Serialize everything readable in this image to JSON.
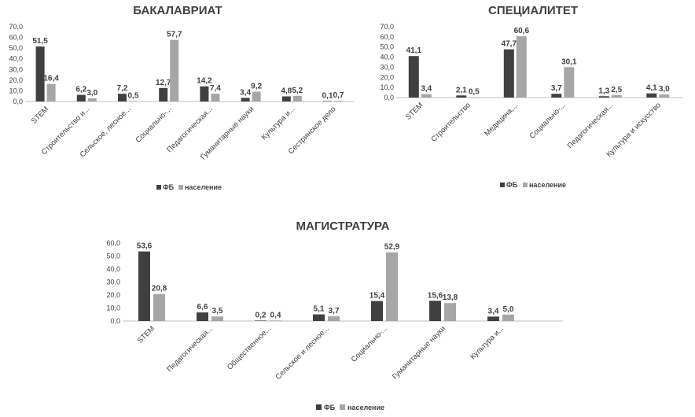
{
  "chart_data": [
    {
      "type": "bar",
      "title": "БАКАЛАВРИАТ",
      "categories": [
        "STEM",
        "Строительство и...",
        "Сельское, лесное...",
        "Социально-...",
        "Педагогическая...",
        "Гуманитарные науки",
        "Культура и...",
        "Сестринское дело"
      ],
      "series": [
        {
          "name": "ФБ",
          "values": [
            51.5,
            6.2,
            7.2,
            12.7,
            14.2,
            3.4,
            4.8,
            0.1
          ],
          "labels": [
            "51,5",
            "6,2",
            "7,2",
            "12,7",
            "14,2",
            "3,4",
            "4,8",
            "0,1"
          ]
        },
        {
          "name": "население",
          "values": [
            16.4,
            3.0,
            0.5,
            57.7,
            7.4,
            9.2,
            5.2,
            0.7
          ],
          "labels": [
            "16,4",
            "3,0",
            "0,5",
            "57,7",
            "7,4",
            "9,2",
            "5,2",
            "0,7"
          ]
        }
      ],
      "ylim": [
        0,
        70
      ],
      "yticks": [
        "0,0",
        "10,0",
        "20,0",
        "30,0",
        "40,0",
        "50,0",
        "60,0",
        "70,0"
      ],
      "legend": "bottom"
    },
    {
      "type": "bar",
      "title": "СПЕЦИАЛИТЕТ",
      "categories": [
        "STEM",
        "Строительство",
        "Медицина,...",
        "Социально-...",
        "Педагогическая...",
        "Культура и искусство"
      ],
      "series": [
        {
          "name": "ФБ",
          "values": [
            41.1,
            2.1,
            47.7,
            3.7,
            1.3,
            4.1
          ],
          "labels": [
            "41,1",
            "2,1",
            "47,7",
            "3,7",
            "1,3",
            "4,1"
          ]
        },
        {
          "name": "население",
          "values": [
            3.4,
            0.5,
            60.6,
            30.1,
            2.5,
            3.0
          ],
          "labels": [
            "3,4",
            "0,5",
            "60,6",
            "30,1",
            "2,5",
            "3,0"
          ]
        }
      ],
      "ylim": [
        0,
        70
      ],
      "yticks": [
        "0,0",
        "10,0",
        "20,0",
        "30,0",
        "40,0",
        "50,0",
        "60,0",
        "70,0"
      ],
      "legend": "bottom"
    },
    {
      "type": "bar",
      "title": "МАГИСТРАТУРА",
      "categories": [
        "STEM",
        "Педагогическая...",
        "Общественное...",
        "Сельское и лесное...",
        "Социально-...",
        "Гуманитарные науки",
        "Культура и..."
      ],
      "series": [
        {
          "name": "ФБ",
          "values": [
            53.6,
            6.6,
            0.2,
            5.1,
            15.4,
            15.6,
            3.4
          ],
          "labels": [
            "53,6",
            "6,6",
            "0,2",
            "5,1",
            "15,4",
            "15,6",
            "3,4"
          ]
        },
        {
          "name": "население",
          "values": [
            20.8,
            3.5,
            0.4,
            3.7,
            52.9,
            13.8,
            5.0
          ],
          "labels": [
            "20,8",
            "3,5",
            "0,4",
            "3,7",
            "52,9",
            "13,8",
            "5,0"
          ]
        }
      ],
      "ylim": [
        0,
        60
      ],
      "yticks": [
        "0,0",
        "10,0",
        "20,0",
        "30,0",
        "40,0",
        "50,0",
        "60,0"
      ],
      "legend": "bottom"
    }
  ],
  "colors": {
    "fb": "#404040",
    "pop": "#a6a6a6",
    "axis": "#bfbfbf",
    "text": "#404040"
  }
}
